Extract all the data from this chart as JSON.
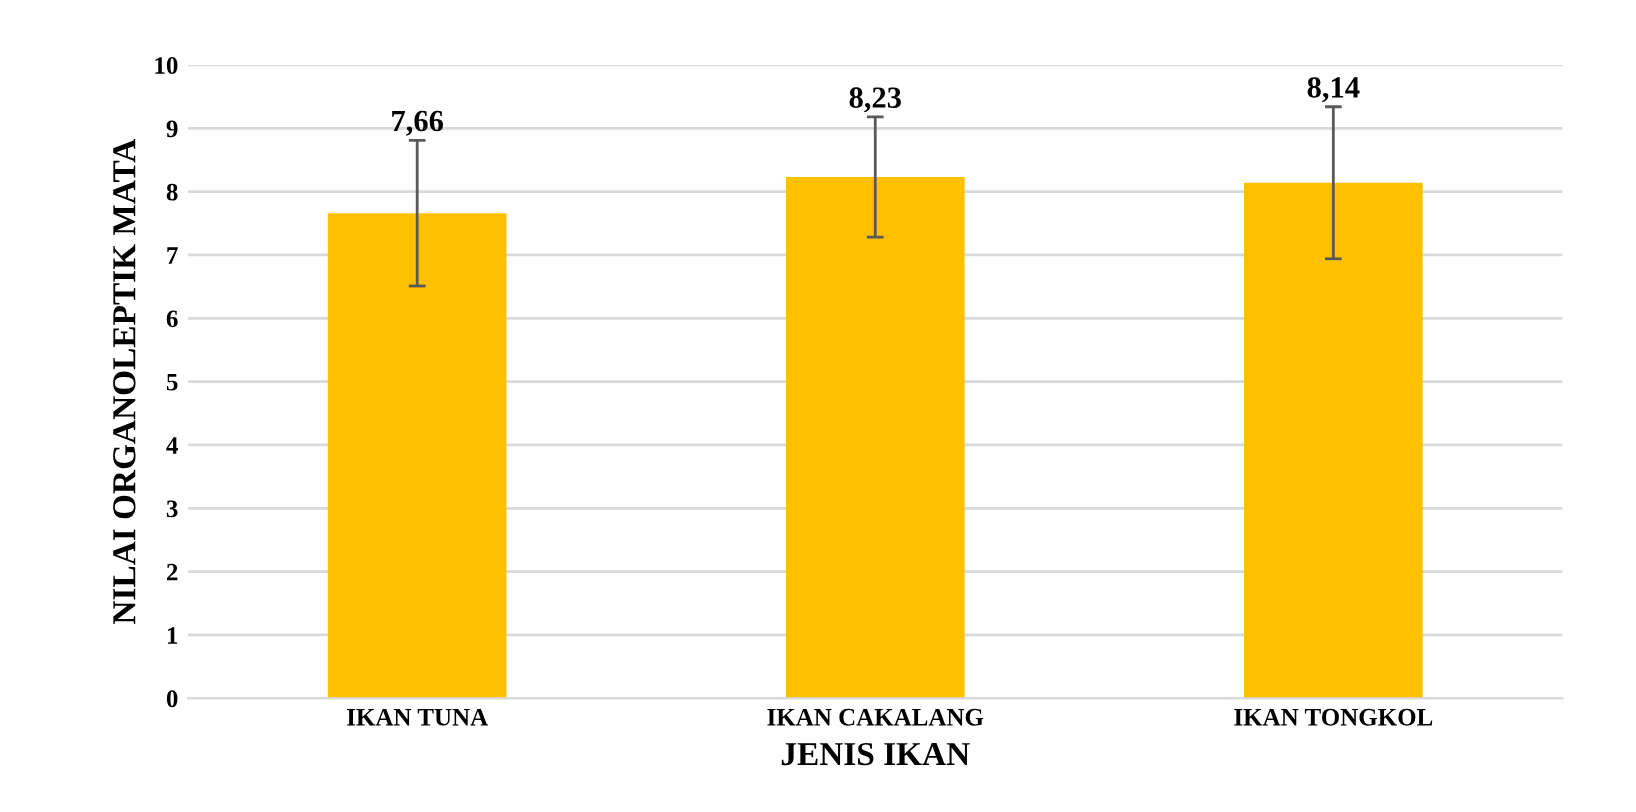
{
  "chart_data": {
    "type": "bar",
    "xlabel": "JENIS IKAN",
    "ylabel": "NILAI ORGANOLEPTIK MATA",
    "categories": [
      "IKAN TUNA",
      "IKAN CAKALANG",
      "IKAN TONGKOL"
    ],
    "values": [
      7.66,
      8.23,
      8.14
    ],
    "value_labels": [
      "7,66",
      "8,23",
      "8,14"
    ],
    "errors": [
      1.15,
      0.95,
      1.2
    ],
    "color": "#ffc000",
    "ylim": [
      0,
      10
    ],
    "yticks": [
      0,
      1,
      2,
      3,
      4,
      5,
      6,
      7,
      8,
      9,
      10
    ],
    "grid": "y"
  }
}
